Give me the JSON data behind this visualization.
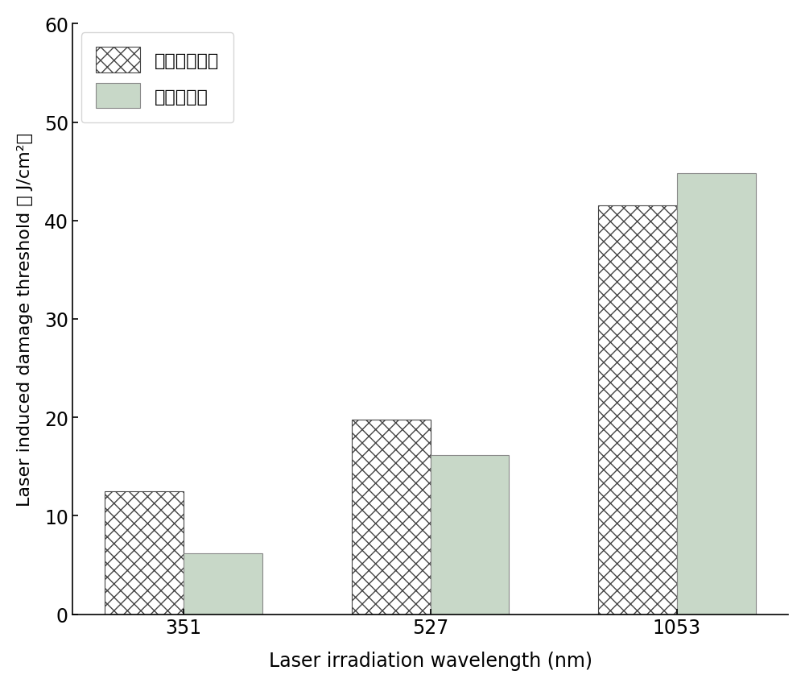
{
  "categories": [
    "351",
    "527",
    "1053"
  ],
  "series1_label": "基频分离玻璃",
  "series2_label": "熔石英玻璃",
  "series1_values": [
    12.5,
    19.8,
    41.5
  ],
  "series2_values": [
    6.2,
    16.2,
    44.8
  ],
  "xlabel": "Laser irradiation wavelength (nm)",
  "ylabel_line1": "Laser induced damage threshold",
  "ylabel_line2": "（J/cm²）",
  "ylim": [
    0,
    60
  ],
  "yticks": [
    0,
    10,
    20,
    30,
    40,
    50,
    60
  ],
  "bar_width": 0.32,
  "hatch_pattern": "xx",
  "series1_facecolor": "#ffffff",
  "series1_edgecolor": "#444444",
  "series2_facecolor": "#c8d8c8",
  "series2_edgecolor": "#888888",
  "background_color": "#ffffff",
  "figure_width": 10.0,
  "figure_height": 8.54
}
